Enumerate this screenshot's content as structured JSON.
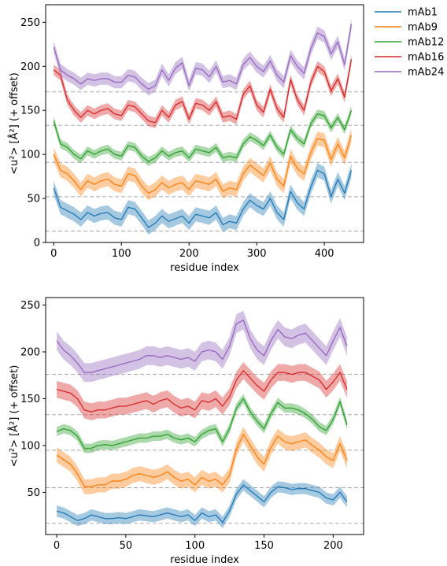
{
  "chart_data": [
    {
      "type": "line",
      "xlabel": "residue index",
      "ylabel": "<u²>   [Å²] (+ offset)",
      "xlim": [
        -12,
        458
      ],
      "ylim": [
        0,
        270
      ],
      "xticks": [
        0,
        100,
        200,
        300,
        400
      ],
      "yticks": [
        0,
        50,
        100,
        150,
        200,
        250
      ],
      "x_max": 440,
      "baselines": [
        13,
        52,
        91,
        133,
        171
      ],
      "series": [
        {
          "name": "mAb1",
          "color": "#1f77b4",
          "band": 8,
          "x": [
            0,
            10,
            20,
            30,
            40,
            50,
            60,
            70,
            80,
            90,
            100,
            110,
            120,
            130,
            140,
            150,
            160,
            170,
            180,
            190,
            200,
            210,
            220,
            230,
            240,
            250,
            260,
            270,
            280,
            290,
            300,
            310,
            320,
            330,
            340,
            350,
            360,
            370,
            380,
            390,
            400,
            410,
            420,
            430,
            440
          ],
          "y": [
            62,
            40,
            36,
            32,
            26,
            34,
            30,
            33,
            34,
            28,
            26,
            40,
            38,
            28,
            17,
            22,
            30,
            24,
            27,
            30,
            22,
            32,
            30,
            28,
            34,
            20,
            24,
            22,
            38,
            48,
            42,
            38,
            50,
            34,
            26,
            58,
            45,
            38,
            63,
            82,
            78,
            52,
            72,
            56,
            82
          ]
        },
        {
          "name": "mAb9",
          "color": "#ff7f0e",
          "band": 8,
          "x": [
            0,
            10,
            20,
            30,
            40,
            50,
            60,
            70,
            80,
            90,
            100,
            110,
            120,
            130,
            140,
            150,
            160,
            170,
            180,
            190,
            200,
            210,
            220,
            230,
            240,
            250,
            260,
            270,
            280,
            290,
            300,
            310,
            320,
            330,
            340,
            350,
            360,
            370,
            380,
            390,
            400,
            410,
            420,
            430,
            440
          ],
          "y": [
            100,
            82,
            78,
            70,
            60,
            70,
            66,
            70,
            72,
            66,
            64,
            78,
            76,
            64,
            56,
            60,
            68,
            62,
            66,
            68,
            60,
            70,
            68,
            66,
            72,
            58,
            62,
            60,
            78,
            88,
            82,
            76,
            90,
            72,
            64,
            98,
            84,
            78,
            102,
            118,
            116,
            94,
            112,
            96,
            122
          ]
        },
        {
          "name": "mAb12",
          "color": "#2ca02c",
          "band": 5,
          "x": [
            0,
            10,
            20,
            30,
            40,
            50,
            60,
            70,
            80,
            90,
            100,
            110,
            120,
            130,
            140,
            150,
            160,
            170,
            180,
            190,
            200,
            210,
            220,
            230,
            240,
            250,
            260,
            270,
            280,
            290,
            300,
            310,
            320,
            330,
            340,
            350,
            360,
            370,
            380,
            390,
            400,
            410,
            420,
            430,
            440
          ],
          "y": [
            138,
            112,
            108,
            100,
            95,
            104,
            100,
            104,
            106,
            100,
            98,
            110,
            108,
            98,
            92,
            96,
            104,
            98,
            102,
            104,
            96,
            106,
            104,
            102,
            108,
            96,
            98,
            96,
            112,
            120,
            116,
            110,
            122,
            108,
            100,
            128,
            118,
            112,
            135,
            146,
            144,
            130,
            142,
            128,
            150
          ]
        },
        {
          "name": "mAb16",
          "color": "#d62728",
          "band": 6,
          "x": [
            0,
            10,
            20,
            30,
            40,
            50,
            60,
            70,
            80,
            90,
            100,
            110,
            120,
            130,
            140,
            150,
            160,
            170,
            180,
            190,
            200,
            210,
            220,
            230,
            240,
            250,
            260,
            270,
            280,
            290,
            300,
            310,
            320,
            330,
            340,
            350,
            360,
            370,
            380,
            390,
            400,
            410,
            420,
            430,
            440
          ],
          "y": [
            196,
            190,
            162,
            150,
            142,
            150,
            146,
            150,
            152,
            146,
            144,
            156,
            154,
            146,
            138,
            136,
            150,
            142,
            156,
            160,
            140,
            158,
            156,
            150,
            160,
            142,
            144,
            140,
            168,
            178,
            156,
            148,
            174,
            152,
            142,
            185,
            162,
            150,
            182,
            200,
            194,
            172,
            186,
            165,
            208
          ]
        },
        {
          "name": "mAb24",
          "color": "#9467bd",
          "band": 7,
          "x": [
            0,
            10,
            20,
            30,
            40,
            50,
            60,
            70,
            80,
            90,
            100,
            110,
            120,
            130,
            140,
            150,
            160,
            170,
            180,
            190,
            200,
            210,
            220,
            230,
            240,
            250,
            260,
            270,
            280,
            290,
            300,
            310,
            320,
            330,
            340,
            350,
            360,
            370,
            380,
            390,
            400,
            410,
            420,
            430,
            440
          ],
          "y": [
            222,
            196,
            190,
            186,
            180,
            186,
            184,
            186,
            186,
            182,
            182,
            190,
            188,
            180,
            174,
            178,
            196,
            184,
            198,
            204,
            178,
            198,
            196,
            188,
            200,
            182,
            184,
            180,
            202,
            210,
            200,
            194,
            206,
            190,
            182,
            212,
            200,
            192,
            220,
            238,
            234,
            214,
            228,
            202,
            248
          ]
        }
      ],
      "legend": {
        "placement": "outside-right",
        "entries": [
          "mAb1",
          "mAb9",
          "mAb12",
          "mAb16",
          "mAb24"
        ]
      }
    },
    {
      "type": "line",
      "xlabel": "residue index",
      "ylabel": "<u²>   [Å²] (+ offset)",
      "xlim": [
        -8,
        222
      ],
      "ylim": [
        5,
        258
      ],
      "xticks": [
        0,
        50,
        100,
        150,
        200
      ],
      "yticks": [
        50,
        100,
        150,
        200,
        250
      ],
      "x_max": 212,
      "baselines": [
        17,
        55,
        95,
        133,
        176
      ],
      "series": [
        {
          "name": "mAb1",
          "color": "#1f77b4",
          "band": 6,
          "x": [
            0,
            5,
            10,
            15,
            20,
            25,
            30,
            35,
            40,
            45,
            50,
            55,
            60,
            65,
            70,
            75,
            80,
            85,
            90,
            95,
            100,
            105,
            110,
            115,
            120,
            125,
            130,
            135,
            140,
            145,
            150,
            155,
            160,
            165,
            170,
            175,
            180,
            185,
            190,
            195,
            200,
            205,
            210
          ],
          "y": [
            30,
            28,
            24,
            20,
            22,
            26,
            24,
            22,
            22,
            23,
            22,
            24,
            26,
            25,
            24,
            26,
            28,
            26,
            24,
            26,
            20,
            28,
            24,
            26,
            18,
            30,
            48,
            58,
            52,
            46,
            40,
            50,
            56,
            55,
            53,
            54,
            54,
            52,
            50,
            44,
            42,
            50,
            40
          ]
        },
        {
          "name": "mAb9",
          "color": "#ff7f0e",
          "band": 8,
          "x": [
            0,
            5,
            10,
            15,
            20,
            25,
            30,
            35,
            40,
            45,
            50,
            55,
            60,
            65,
            70,
            75,
            80,
            85,
            90,
            95,
            100,
            105,
            110,
            115,
            120,
            125,
            130,
            135,
            140,
            145,
            150,
            155,
            160,
            165,
            170,
            175,
            180,
            185,
            190,
            195,
            200,
            205,
            210
          ],
          "y": [
            90,
            85,
            80,
            70,
            56,
            56,
            58,
            58,
            62,
            62,
            64,
            68,
            70,
            68,
            66,
            68,
            72,
            66,
            62,
            64,
            58,
            66,
            62,
            64,
            58,
            68,
            96,
            112,
            100,
            88,
            80,
            98,
            110,
            104,
            102,
            104,
            106,
            100,
            95,
            88,
            84,
            102,
            84
          ]
        },
        {
          "name": "mAb12",
          "color": "#2ca02c",
          "band": 5,
          "x": [
            0,
            5,
            10,
            15,
            20,
            25,
            30,
            35,
            40,
            45,
            50,
            55,
            60,
            65,
            70,
            75,
            80,
            85,
            90,
            95,
            100,
            105,
            110,
            115,
            120,
            125,
            130,
            135,
            140,
            145,
            150,
            155,
            160,
            165,
            170,
            175,
            180,
            185,
            190,
            195,
            200,
            205,
            210
          ],
          "y": [
            115,
            118,
            116,
            110,
            97,
            97,
            100,
            101,
            100,
            102,
            104,
            106,
            108,
            108,
            110,
            110,
            112,
            108,
            106,
            108,
            104,
            112,
            116,
            118,
            104,
            118,
            140,
            150,
            136,
            126,
            118,
            134,
            146,
            140,
            140,
            138,
            134,
            128,
            120,
            116,
            128,
            147,
            122
          ]
        },
        {
          "name": "mAb16",
          "color": "#d62728",
          "band": 9,
          "x": [
            0,
            5,
            10,
            15,
            20,
            25,
            30,
            35,
            40,
            45,
            50,
            55,
            60,
            65,
            70,
            75,
            80,
            85,
            90,
            95,
            100,
            105,
            110,
            115,
            120,
            125,
            130,
            135,
            140,
            145,
            150,
            155,
            160,
            165,
            170,
            175,
            180,
            185,
            190,
            195,
            200,
            205,
            210
          ],
          "y": [
            160,
            158,
            156,
            150,
            138,
            136,
            138,
            138,
            140,
            142,
            142,
            144,
            146,
            148,
            144,
            148,
            150,
            144,
            140,
            142,
            138,
            148,
            146,
            150,
            142,
            152,
            170,
            180,
            172,
            164,
            158,
            170,
            178,
            178,
            176,
            178,
            178,
            174,
            170,
            160,
            168,
            178,
            160
          ]
        },
        {
          "name": "mAb24",
          "color": "#9467bd",
          "band": 10,
          "x": [
            0,
            5,
            10,
            15,
            20,
            25,
            30,
            35,
            40,
            45,
            50,
            55,
            60,
            65,
            70,
            75,
            80,
            85,
            90,
            95,
            100,
            105,
            110,
            115,
            120,
            125,
            130,
            135,
            140,
            145,
            150,
            155,
            160,
            165,
            170,
            175,
            180,
            185,
            190,
            195,
            200,
            205,
            210
          ],
          "y": [
            212,
            202,
            196,
            188,
            178,
            178,
            180,
            182,
            184,
            186,
            188,
            190,
            192,
            196,
            196,
            194,
            196,
            194,
            192,
            194,
            190,
            200,
            202,
            200,
            192,
            206,
            230,
            234,
            214,
            202,
            196,
            212,
            224,
            216,
            214,
            218,
            220,
            212,
            204,
            196,
            212,
            226,
            206
          ]
        }
      ]
    }
  ]
}
